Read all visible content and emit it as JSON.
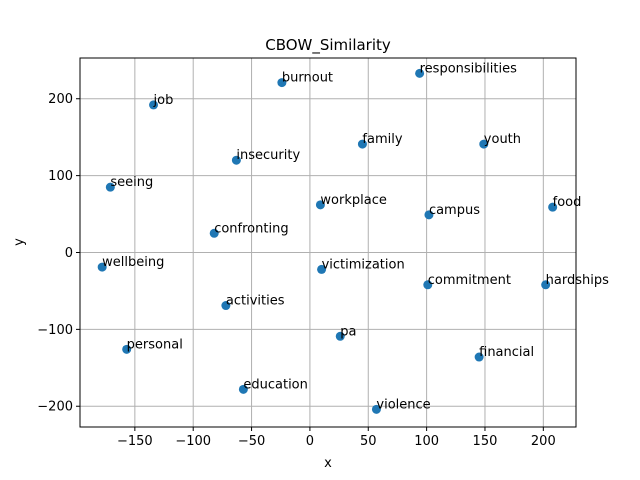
{
  "chart_data": {
    "type": "scatter",
    "title": "CBOW_Similarity",
    "xlabel": "x",
    "ylabel": "y",
    "xlim": [
      -197,
      228
    ],
    "ylim": [
      -227,
      253
    ],
    "grid": true,
    "xticks": [
      -150,
      -100,
      -50,
      0,
      50,
      100,
      150,
      200
    ],
    "yticks": [
      -200,
      -100,
      0,
      100,
      200
    ],
    "marker_color": "#1f77b4",
    "points": [
      {
        "label": "responsibilities",
        "x": 94,
        "y": 233
      },
      {
        "label": "burnout",
        "x": -24,
        "y": 221
      },
      {
        "label": "job",
        "x": -134,
        "y": 192
      },
      {
        "label": "family",
        "x": 45,
        "y": 141
      },
      {
        "label": "youth",
        "x": 149,
        "y": 141
      },
      {
        "label": "insecurity",
        "x": -63,
        "y": 120
      },
      {
        "label": "seeing",
        "x": -171,
        "y": 85
      },
      {
        "label": "workplace",
        "x": 9,
        "y": 62
      },
      {
        "label": "food",
        "x": 208,
        "y": 59
      },
      {
        "label": "campus",
        "x": 102,
        "y": 49
      },
      {
        "label": "confronting",
        "x": -82,
        "y": 25
      },
      {
        "label": "wellbeing",
        "x": -178,
        "y": -19
      },
      {
        "label": "victimization",
        "x": 10,
        "y": -22
      },
      {
        "label": "commitment",
        "x": 101,
        "y": -42
      },
      {
        "label": "hardships",
        "x": 202,
        "y": -42
      },
      {
        "label": "activities",
        "x": -72,
        "y": -69
      },
      {
        "label": "pa",
        "x": 26,
        "y": -109
      },
      {
        "label": "personal",
        "x": -157,
        "y": -126
      },
      {
        "label": "financial",
        "x": 145,
        "y": -136
      },
      {
        "label": "education",
        "x": -57,
        "y": -178
      },
      {
        "label": "violence",
        "x": 57,
        "y": -204
      }
    ]
  }
}
